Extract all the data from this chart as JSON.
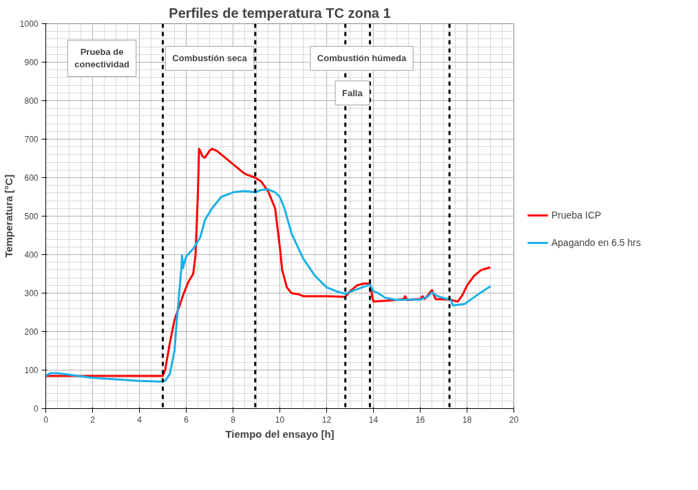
{
  "chart_data": {
    "type": "line",
    "title": "Perfiles de temperatura TC zona 1",
    "xlabel": "Tiempo del ensayo [h]",
    "ylabel": "Temperatura [°C]",
    "xlim": [
      0,
      20
    ],
    "ylim": [
      0,
      1000
    ],
    "xticks": [
      0,
      2,
      4,
      6,
      8,
      10,
      12,
      14,
      16,
      18,
      20
    ],
    "yticks": [
      0,
      100,
      200,
      300,
      400,
      500,
      600,
      700,
      800,
      900,
      1000
    ],
    "grid": true,
    "legend": "right",
    "line_style": "solid",
    "marker": "none",
    "series": [
      {
        "name": "Prueba ICP",
        "color": "#ff0000",
        "x": [
          0,
          5.0,
          5.1,
          5.3,
          5.5,
          5.7,
          5.9,
          6.1,
          6.3,
          6.4,
          6.5,
          6.55,
          6.7,
          6.8,
          7.0,
          7.1,
          7.3,
          7.6,
          8.0,
          8.5,
          8.95,
          9.2,
          9.5,
          9.8,
          10.0,
          10.1,
          10.3,
          10.5,
          10.8,
          11.0,
          12.0,
          12.8,
          13.0,
          13.3,
          13.6,
          13.85,
          13.95,
          14.0,
          15.0,
          15.3,
          15.35,
          15.45,
          16.0,
          16.1,
          16.2,
          16.5,
          16.65,
          17.25,
          17.6,
          17.8,
          18.0,
          18.3,
          18.6,
          19.0
        ],
        "values": [
          85,
          85,
          100,
          170,
          230,
          265,
          300,
          330,
          350,
          400,
          560,
          675,
          655,
          652,
          670,
          675,
          670,
          655,
          635,
          610,
          600,
          590,
          565,
          520,
          420,
          360,
          315,
          300,
          297,
          292,
          292,
          290,
          305,
          320,
          325,
          325,
          290,
          278,
          282,
          285,
          292,
          282,
          285,
          292,
          285,
          308,
          285,
          283,
          278,
          295,
          320,
          345,
          360,
          367
        ]
      },
      {
        "name": "Apagando en 6.5 hrs",
        "color": "#1ab0e8",
        "x": [
          0,
          0.2,
          0.5,
          1,
          2,
          3,
          4,
          4.9,
          5.1,
          5.3,
          5.5,
          5.6,
          5.7,
          5.8,
          5.82,
          5.87,
          5.9,
          6.0,
          6.3,
          6.6,
          6.8,
          7.1,
          7.5,
          8.0,
          8.5,
          8.95,
          9.2,
          9.5,
          9.8,
          10.0,
          10.2,
          10.5,
          11.0,
          11.5,
          12.0,
          12.4,
          12.8,
          13.3,
          13.85,
          14.0,
          14.2,
          14.5,
          15.0,
          15.5,
          16.0,
          16.3,
          16.5,
          16.7,
          17.0,
          17.3,
          17.4,
          17.9,
          18.2,
          18.6,
          19.0
        ],
        "values": [
          85,
          92,
          92,
          88,
          80,
          76,
          72,
          70,
          72,
          90,
          150,
          230,
          300,
          370,
          398,
          365,
          375,
          395,
          415,
          445,
          490,
          520,
          550,
          562,
          565,
          562,
          568,
          570,
          562,
          550,
          520,
          455,
          390,
          345,
          315,
          305,
          298,
          310,
          322,
          305,
          300,
          288,
          282,
          283,
          283,
          290,
          302,
          293,
          287,
          283,
          268,
          272,
          285,
          302,
          318
        ]
      }
    ],
    "ref_lines": [
      {
        "axis": "x",
        "value": 5.0,
        "color": "#000000",
        "line_style": "dashed"
      },
      {
        "axis": "x",
        "value": 8.95,
        "color": "#000000",
        "line_style": "dashed"
      },
      {
        "axis": "x",
        "value": 12.8,
        "color": "#000000",
        "line_style": "dashed"
      },
      {
        "axis": "x",
        "value": 13.85,
        "color": "#000000",
        "line_style": "dashed"
      },
      {
        "axis": "x",
        "value": 17.25,
        "color": "#000000",
        "line_style": "dashed"
      }
    ],
    "annotations": [
      "Prueba de\nconectividad",
      "Combustión seca",
      "Combustión húmeda",
      "Falla"
    ]
  }
}
